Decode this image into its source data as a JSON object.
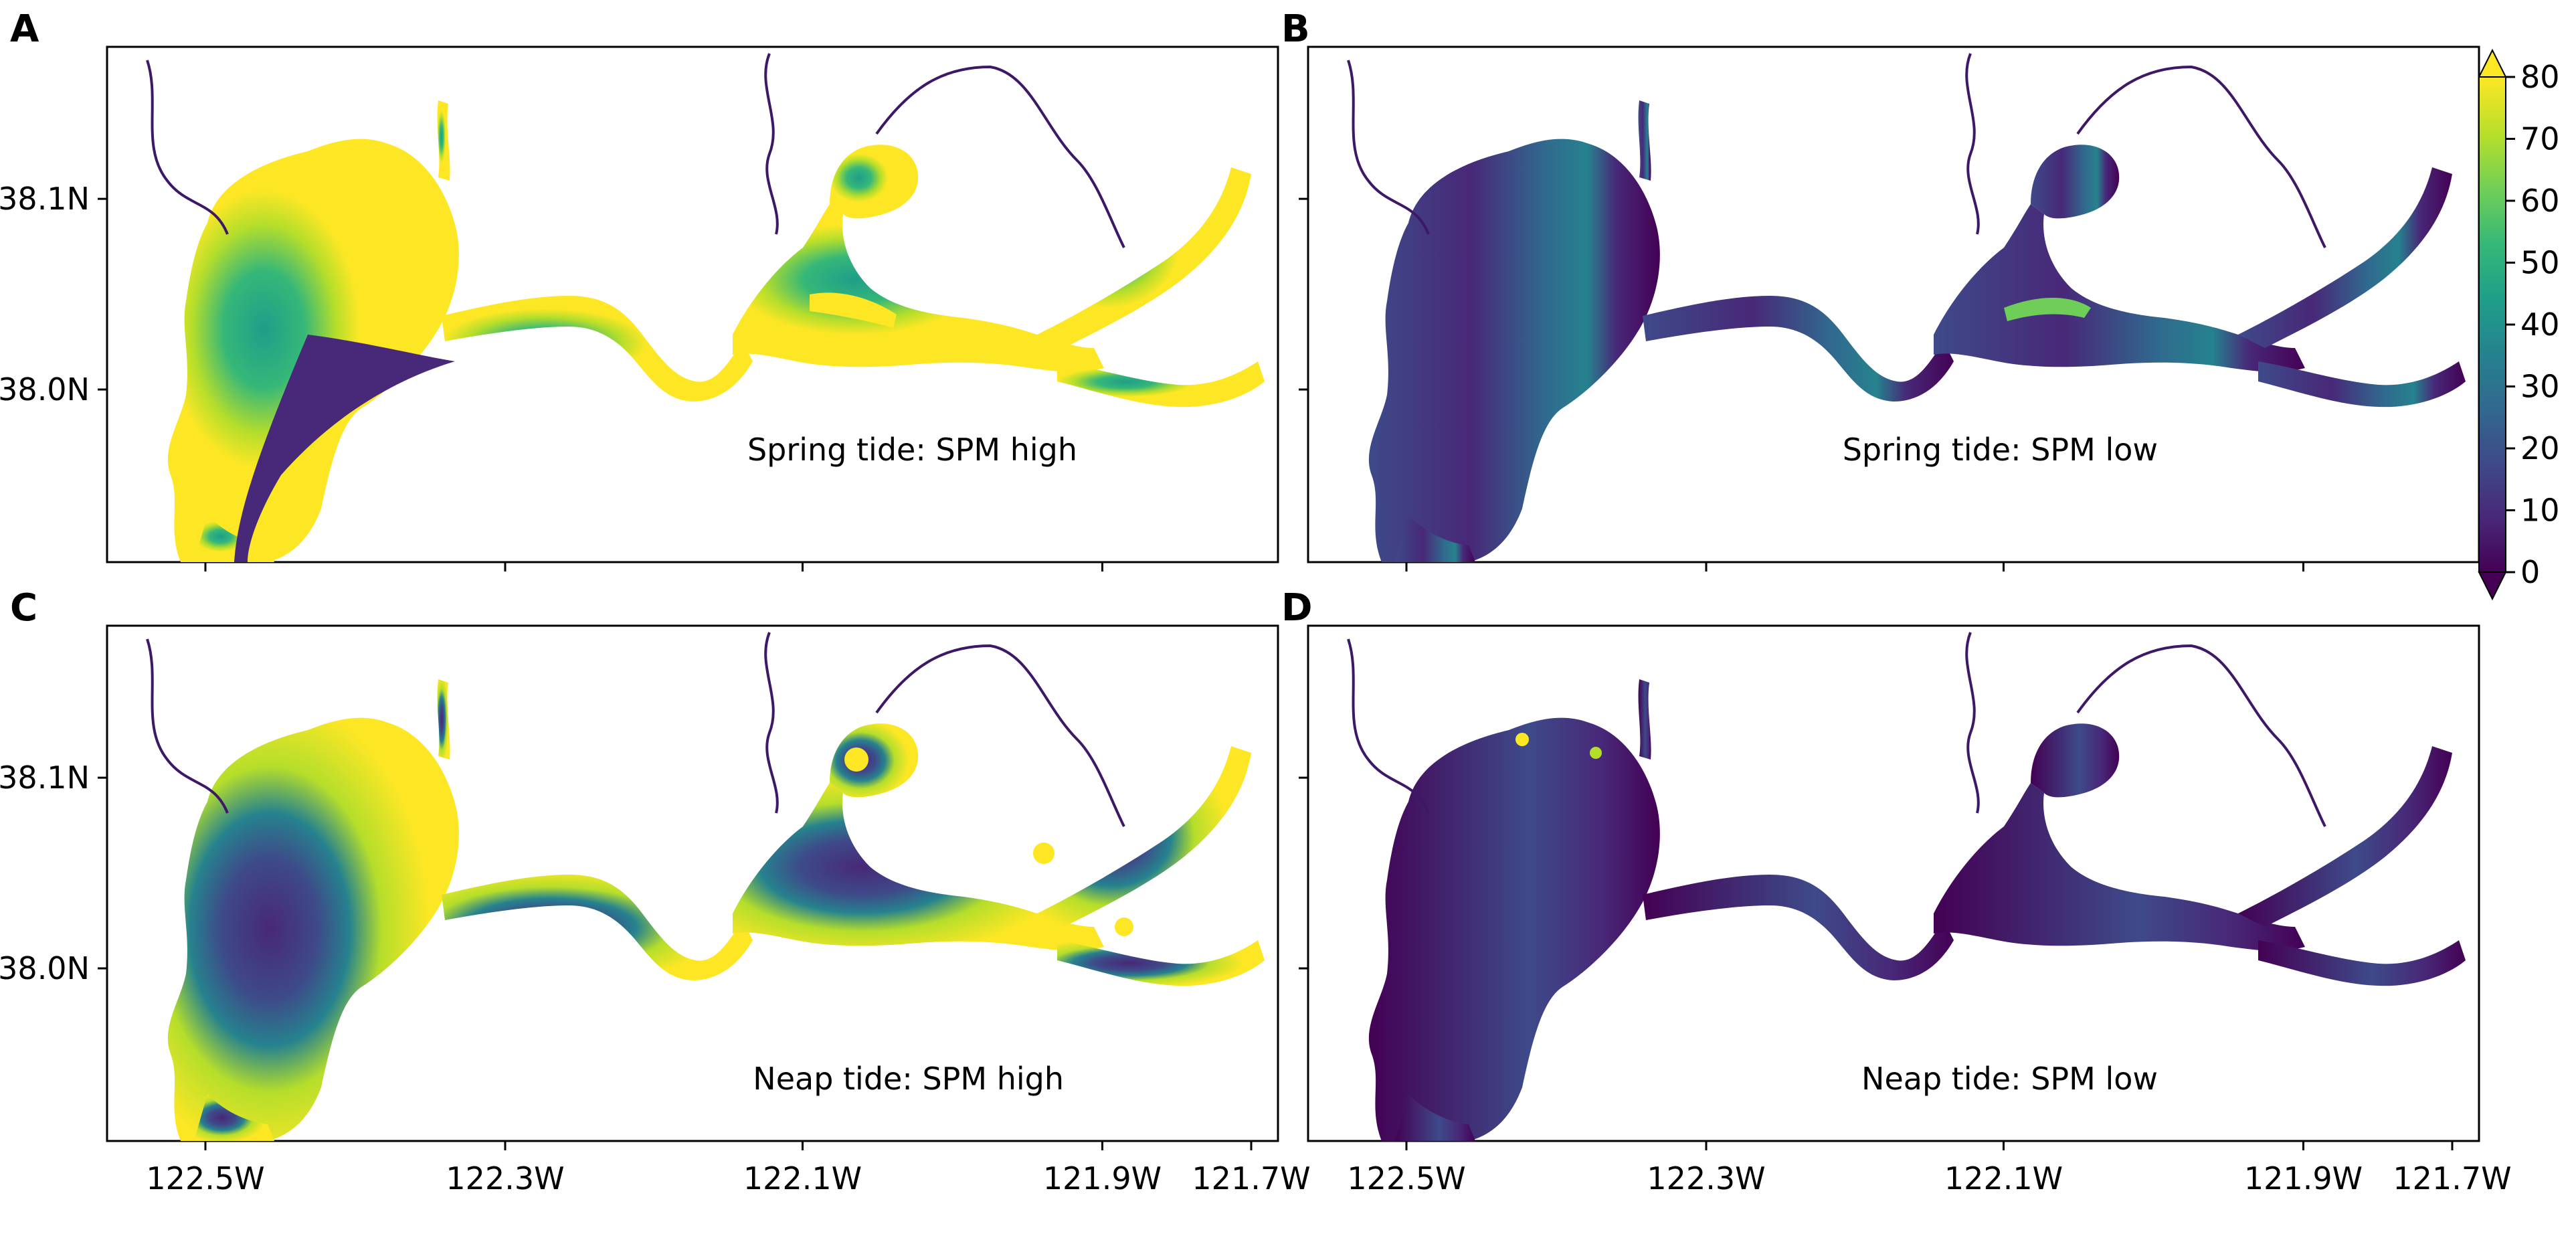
{
  "figure": {
    "panels": [
      {
        "id": "A",
        "letter": "A",
        "caption": "Spring tide: SPM high",
        "spm": "spring_high"
      },
      {
        "id": "B",
        "letter": "B",
        "caption": "Spring tide: SPM low",
        "spm": "spring_low"
      },
      {
        "id": "C",
        "letter": "C",
        "caption": "Neap tide: SPM high",
        "spm": "neap_high"
      },
      {
        "id": "D",
        "letter": "D",
        "caption": "Neap tide: SPM low",
        "spm": "neap_low"
      }
    ],
    "x_ticks": [
      "122.5W",
      "122.3W",
      "122.1W",
      "121.9W",
      "121.7W"
    ],
    "y_ticks": [
      "38.1N",
      "38.0N"
    ],
    "colorbar": {
      "ticks": [
        "80",
        "70",
        "60",
        "50",
        "40",
        "30",
        "20",
        "10",
        "0"
      ],
      "min": 0,
      "max": 80,
      "colormap": "viridis",
      "extend": "both",
      "colors": [
        "#440154",
        "#482878",
        "#3e4a89",
        "#31688e",
        "#26828e",
        "#1f9e89",
        "#35b779",
        "#6ece58",
        "#b5de2b",
        "#fde725"
      ]
    }
  },
  "chart_data": {
    "type": "heatmap",
    "title": "",
    "xlabel": "",
    "ylabel": "",
    "x_ticks": [
      "122.5W",
      "122.3W",
      "122.1W",
      "121.9W",
      "121.7W"
    ],
    "y_ticks": [
      "38.1N",
      "38.0N"
    ],
    "colorbar": {
      "min": 0,
      "max": 80,
      "ticks": [
        0,
        10,
        20,
        30,
        40,
        50,
        60,
        70,
        80
      ],
      "extend": "both"
    },
    "panels": [
      {
        "label": "A",
        "caption": "Spring tide: SPM high",
        "west_bay": "mostly 80+ (yellow) with green core and dark channel",
        "carquinez": "~30",
        "suisun": "~40-80 along channels"
      },
      {
        "label": "B",
        "caption": "Spring tide: SPM low",
        "west_bay": "~10",
        "carquinez": "~25",
        "suisun": "~30-60 along channels"
      },
      {
        "label": "C",
        "caption": "Neap tide: SPM high",
        "west_bay": "80+ along margins, ~20-40 interior",
        "carquinez": "~20",
        "suisun": "~40, 80+ patches"
      },
      {
        "label": "D",
        "caption": "Neap tide: SPM low",
        "west_bay": "~0-10, 80+ spots at north shore",
        "carquinez": "~15",
        "suisun": "~15"
      }
    ]
  }
}
